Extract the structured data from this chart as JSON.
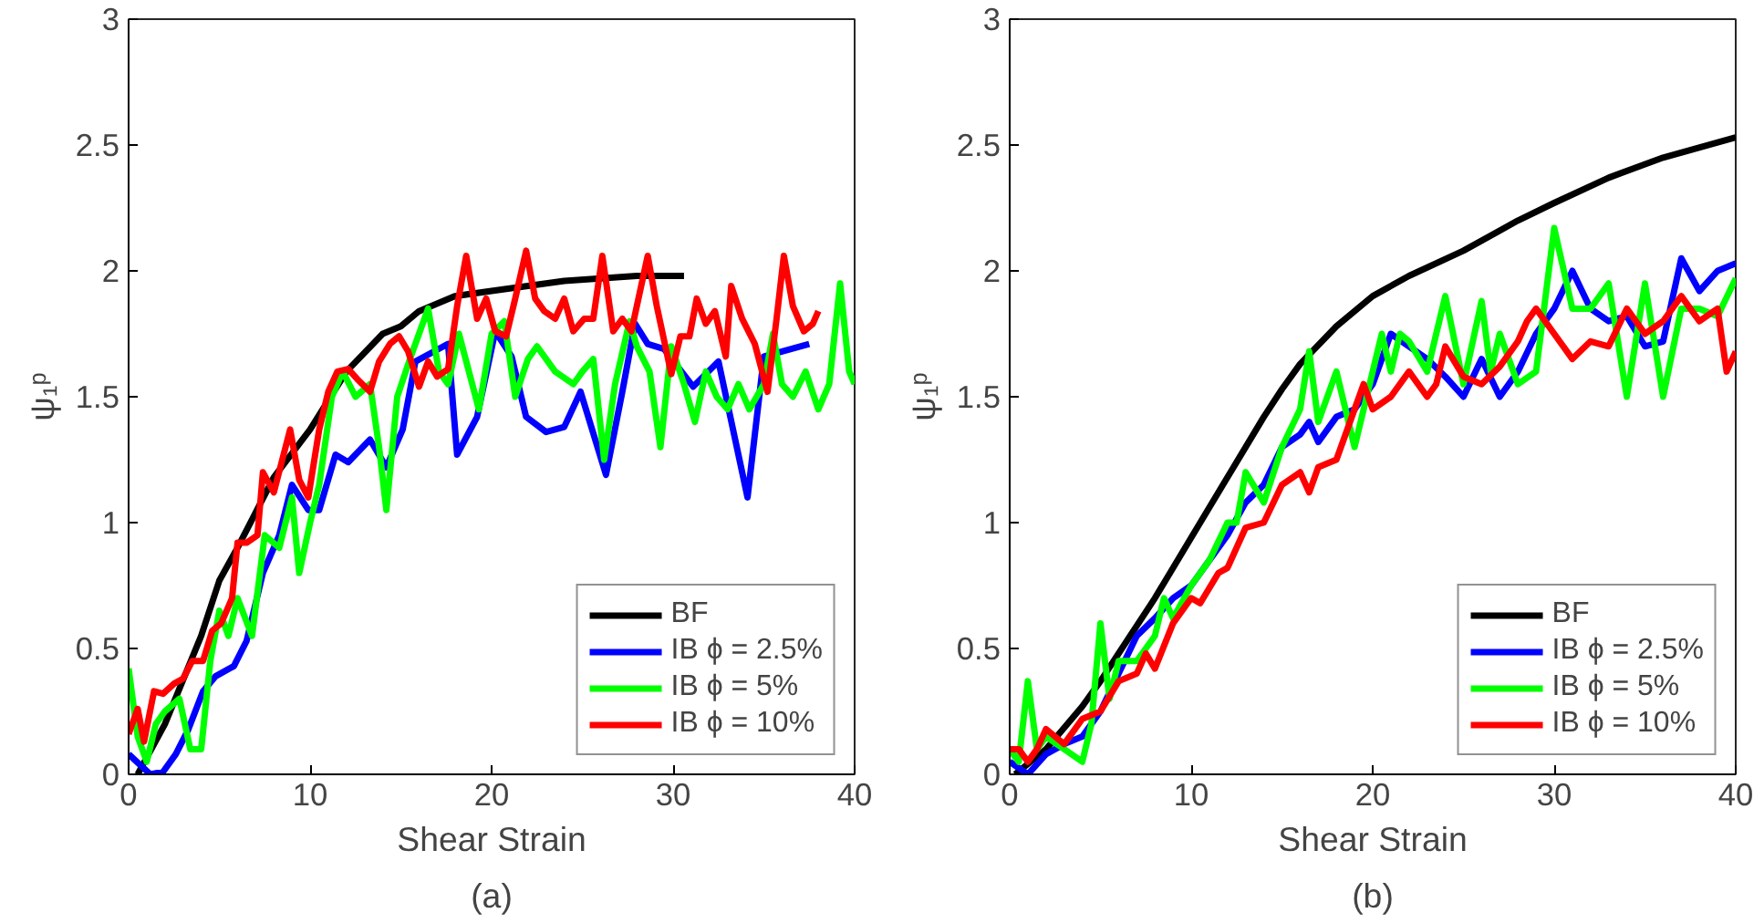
{
  "chart_data": [
    {
      "type": "line",
      "xlabel": "Shear Strain",
      "ylabel": "ψ₁ᵖ",
      "annotations": [
        "(a)"
      ],
      "xlim": [
        0,
        40
      ],
      "ylim": [
        0,
        3
      ],
      "xticks": [
        0,
        10,
        20,
        30,
        40
      ],
      "yticks": [
        0,
        0.5,
        1,
        1.5,
        2,
        2.5,
        3
      ],
      "grid": false,
      "legend": "bottom right",
      "line_style": "solid",
      "marker": "none",
      "series": [
        {
          "name": "BF",
          "color": "#000000",
          "x": [
            0.5,
            2,
            4,
            5,
            6,
            8,
            10,
            12,
            14,
            15,
            16,
            18,
            20,
            24,
            28,
            30.6
          ],
          "values": [
            0,
            0.2,
            0.55,
            0.77,
            0.9,
            1.18,
            1.37,
            1.6,
            1.75,
            1.78,
            1.84,
            1.9,
            1.92,
            1.96,
            1.98,
            1.98
          ]
        },
        {
          "name": "IB ϕ = 2.5%",
          "color": "#0000ff",
          "x": [
            0,
            1.2,
            1.9,
            2.6,
            3.3,
            4.1,
            4.8,
            5.8,
            6.5,
            7.4,
            8.3,
            9.0,
            9.9,
            10.5,
            11.4,
            12.1,
            13.3,
            14.2,
            15.1,
            15.8,
            17.6,
            18.1,
            19.2,
            20.2,
            21.1,
            21.9,
            23.0,
            24.0,
            24.9,
            26.3,
            27.2,
            27.9,
            28.6,
            29.5,
            31.1,
            32.5,
            34.1,
            35.0,
            37.5
          ],
          "values": [
            0.08,
            0,
            0.01,
            0.08,
            0.18,
            0.33,
            0.39,
            0.43,
            0.53,
            0.8,
            0.95,
            1.15,
            1.05,
            1.05,
            1.27,
            1.24,
            1.33,
            1.22,
            1.37,
            1.64,
            1.71,
            1.27,
            1.42,
            1.76,
            1.66,
            1.42,
            1.36,
            1.38,
            1.52,
            1.19,
            1.52,
            1.79,
            1.71,
            1.69,
            1.54,
            1.64,
            1.1,
            1.66,
            1.71
          ]
        },
        {
          "name": "IB ϕ = 5%",
          "color": "#00ff00",
          "x": [
            0,
            0.5,
            1,
            1.5,
            2,
            2.8,
            3.4,
            4,
            4.5,
            5,
            5.5,
            6,
            6.8,
            7.5,
            8.3,
            9,
            9.4,
            10,
            10.5,
            11.2,
            11.8,
            12.5,
            13.3,
            13.8,
            14.2,
            14.8,
            15.5,
            16,
            16.5,
            17.1,
            17.6,
            18.2,
            19.3,
            20,
            20.7,
            21.3,
            22,
            22.5,
            23.5,
            24.5,
            25,
            25.6,
            26.2,
            26.8,
            27.6,
            28,
            28.7,
            29.3,
            29.9,
            30.6,
            31.2,
            31.8,
            32.4,
            33,
            33.6,
            34.2,
            35,
            35.5,
            36,
            36.6,
            37.3,
            38,
            38.6,
            39.2,
            39.7,
            40
          ],
          "values": [
            0.42,
            0.15,
            0.05,
            0.2,
            0.25,
            0.3,
            0.1,
            0.1,
            0.45,
            0.65,
            0.55,
            0.7,
            0.55,
            0.95,
            0.9,
            1.1,
            0.8,
            1.0,
            1.15,
            1.5,
            1.6,
            1.5,
            1.55,
            1.3,
            1.05,
            1.5,
            1.65,
            1.75,
            1.85,
            1.6,
            1.55,
            1.75,
            1.45,
            1.75,
            1.8,
            1.5,
            1.65,
            1.7,
            1.6,
            1.55,
            1.6,
            1.65,
            1.25,
            1.55,
            1.8,
            1.7,
            1.6,
            1.3,
            1.7,
            1.55,
            1.4,
            1.6,
            1.5,
            1.45,
            1.55,
            1.45,
            1.55,
            1.75,
            1.55,
            1.5,
            1.6,
            1.45,
            1.55,
            1.95,
            1.6,
            1.55
          ]
        },
        {
          "name": "IB ϕ = 10%",
          "color": "#ff0000",
          "x": [
            0,
            0.5,
            0.85,
            1.4,
            1.9,
            2.5,
            3.0,
            3.5,
            4.1,
            4.6,
            5.1,
            5.7,
            6.0,
            6.5,
            7.1,
            7.4,
            8.0,
            8.9,
            9.4,
            9.9,
            10.5,
            11.0,
            11.5,
            12.1,
            12.6,
            13.3,
            13.8,
            14.4,
            14.9,
            15.4,
            16.0,
            16.5,
            17.0,
            17.6,
            18.1,
            18.6,
            19.2,
            19.7,
            20.2,
            20.8,
            21.3,
            21.9,
            22.4,
            22.9,
            23.5,
            24.0,
            24.5,
            25.1,
            25.6,
            26.1,
            26.7,
            27.2,
            27.7,
            28.3,
            28.6,
            29.1,
            29.9,
            30.4,
            30.9,
            31.3,
            31.8,
            32.3,
            32.9,
            33.2,
            33.8,
            34.5,
            35.2,
            35.7,
            36.1,
            36.6,
            37.2,
            37.7,
            38.0
          ],
          "values": [
            0.16,
            0.26,
            0.13,
            0.33,
            0.32,
            0.36,
            0.38,
            0.45,
            0.45,
            0.57,
            0.6,
            0.7,
            0.92,
            0.92,
            0.95,
            1.2,
            1.12,
            1.37,
            1.17,
            1.1,
            1.37,
            1.52,
            1.6,
            1.61,
            1.57,
            1.52,
            1.64,
            1.71,
            1.74,
            1.68,
            1.54,
            1.64,
            1.58,
            1.61,
            1.86,
            2.06,
            1.81,
            1.89,
            1.76,
            1.74,
            1.89,
            2.08,
            1.89,
            1.84,
            1.81,
            1.89,
            1.76,
            1.81,
            1.81,
            2.06,
            1.76,
            1.81,
            1.76,
            1.96,
            2.06,
            1.86,
            1.59,
            1.74,
            1.74,
            1.89,
            1.79,
            1.84,
            1.66,
            1.94,
            1.81,
            1.71,
            1.52,
            1.81,
            2.06,
            1.86,
            1.76,
            1.79,
            1.84
          ]
        }
      ]
    },
    {
      "type": "line",
      "xlabel": "Shear Strain",
      "ylabel": "ψ₁ᵖ",
      "annotations": [
        "(b)"
      ],
      "xlim": [
        0,
        40
      ],
      "ylim": [
        0,
        3
      ],
      "xticks": [
        0,
        10,
        20,
        30,
        40
      ],
      "yticks": [
        0,
        0.5,
        1,
        1.5,
        2,
        2.5,
        3
      ],
      "grid": false,
      "legend": "bottom right",
      "line_style": "solid",
      "marker": "none",
      "series": [
        {
          "name": "BF",
          "color": "#000000",
          "x": [
            0.3,
            2,
            4,
            5,
            6,
            8,
            10,
            12,
            14,
            15,
            16,
            18,
            20,
            22,
            25,
            28,
            30,
            33,
            36,
            40
          ],
          "values": [
            0,
            0.1,
            0.27,
            0.37,
            0.48,
            0.7,
            0.94,
            1.18,
            1.42,
            1.53,
            1.63,
            1.78,
            1.9,
            1.98,
            2.08,
            2.2,
            2.27,
            2.37,
            2.45,
            2.53
          ]
        },
        {
          "name": "IB ϕ = 2.5%",
          "color": "#0000ff",
          "x": [
            0,
            1,
            2,
            3,
            4,
            5,
            6,
            7,
            8,
            9,
            10,
            11,
            12,
            13,
            14,
            15,
            16,
            16.5,
            17,
            18,
            19,
            20,
            21,
            22,
            23,
            24,
            25,
            26,
            27,
            28,
            29,
            30,
            31,
            32,
            33,
            34,
            35,
            36,
            37,
            38,
            39,
            40
          ],
          "values": [
            0.05,
            0,
            0.08,
            0.12,
            0.15,
            0.25,
            0.4,
            0.55,
            0.62,
            0.7,
            0.75,
            0.85,
            0.95,
            1.08,
            1.15,
            1.3,
            1.35,
            1.4,
            1.32,
            1.42,
            1.45,
            1.55,
            1.75,
            1.7,
            1.65,
            1.58,
            1.5,
            1.65,
            1.5,
            1.6,
            1.75,
            1.85,
            2.0,
            1.85,
            1.8,
            1.82,
            1.7,
            1.72,
            2.05,
            1.92,
            2.0,
            2.03
          ]
        },
        {
          "name": "IB ϕ = 5%",
          "color": "#00ff00",
          "x": [
            0,
            0.5,
            1,
            1.5,
            2,
            3,
            4,
            4.5,
            5,
            5.5,
            6,
            7,
            8,
            8.5,
            9,
            10,
            11,
            12,
            12.5,
            13,
            14,
            15,
            16,
            16.5,
            17,
            18,
            19,
            20,
            20.5,
            21,
            21.5,
            22,
            23,
            24,
            25,
            26,
            26.5,
            27,
            28,
            29,
            30,
            31,
            32,
            33,
            34,
            35,
            36,
            37,
            38,
            39,
            40
          ],
          "values": [
            0.1,
            0.05,
            0.37,
            0.1,
            0.15,
            0.1,
            0.05,
            0.2,
            0.6,
            0.3,
            0.45,
            0.45,
            0.55,
            0.7,
            0.62,
            0.75,
            0.85,
            1.0,
            1.0,
            1.2,
            1.08,
            1.3,
            1.45,
            1.68,
            1.4,
            1.6,
            1.3,
            1.6,
            1.75,
            1.6,
            1.75,
            1.72,
            1.6,
            1.9,
            1.55,
            1.88,
            1.6,
            1.75,
            1.55,
            1.6,
            2.17,
            1.85,
            1.85,
            1.95,
            1.5,
            1.95,
            1.5,
            1.85,
            1.85,
            1.82,
            1.97
          ]
        },
        {
          "name": "IB ϕ = 10%",
          "color": "#ff0000",
          "x": [
            0,
            0.5,
            1,
            1.5,
            2,
            3,
            4,
            5,
            6,
            7,
            7.5,
            8,
            9,
            10,
            10.5,
            11.5,
            12,
            13,
            14,
            15,
            16,
            16.5,
            17,
            18,
            19,
            19.5,
            20,
            21,
            22,
            23,
            23.5,
            24,
            25,
            26,
            27,
            28,
            28.5,
            29,
            30,
            31,
            32,
            33,
            34,
            35,
            36,
            37,
            38,
            39,
            39.5,
            40
          ],
          "values": [
            0.1,
            0.1,
            0.05,
            0.1,
            0.18,
            0.12,
            0.22,
            0.25,
            0.37,
            0.4,
            0.48,
            0.42,
            0.6,
            0.7,
            0.68,
            0.8,
            0.82,
            0.98,
            1.0,
            1.15,
            1.2,
            1.12,
            1.22,
            1.25,
            1.45,
            1.55,
            1.45,
            1.5,
            1.6,
            1.5,
            1.55,
            1.7,
            1.58,
            1.55,
            1.62,
            1.72,
            1.8,
            1.85,
            1.75,
            1.65,
            1.72,
            1.7,
            1.85,
            1.75,
            1.8,
            1.9,
            1.8,
            1.85,
            1.6,
            1.68
          ]
        }
      ]
    }
  ]
}
